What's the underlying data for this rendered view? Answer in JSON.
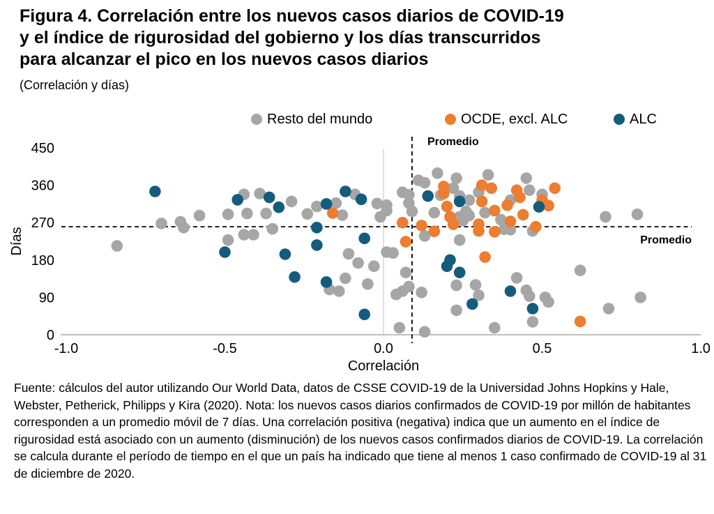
{
  "figure": {
    "title_lines": [
      "Figura 4. Correlación entre los nuevos casos diarios de COVID-19",
      "y el índice de rigurosidad del gobierno y los días transcurridos",
      "para alcanzar el pico en los nuevos casos diarios"
    ],
    "subtitle": "(Correlación y días)"
  },
  "legend": [
    {
      "label": "Resto del mundo",
      "color": "#A6A6A6"
    },
    {
      "label": "OCDE, excl. ALC",
      "color": "#ED7D31"
    },
    {
      "label": "ALC",
      "color": "#145C7E"
    }
  ],
  "chart_data": {
    "type": "scatter",
    "xlabel": "Correlación",
    "ylabel": "Días",
    "xlim": [
      -1.0,
      1.0
    ],
    "ylim": [
      0,
      450
    ],
    "x_ticks": [
      -1.0,
      -0.5,
      0.0,
      0.5,
      1.0
    ],
    "x_tick_labels": [
      "-1.0",
      "-0.5",
      "0.0",
      "0.5",
      "1.0"
    ],
    "y_ticks": [
      0,
      90,
      180,
      270,
      360,
      450
    ],
    "grid": false,
    "legend_position": "top",
    "mean_lines": {
      "x": 0.09,
      "y": 260,
      "label_top": "Promedio",
      "label_right": "Promedio"
    },
    "series": [
      {
        "name": "Resto del mundo",
        "color": "#A6A6A6",
        "points": [
          [
            -0.84,
            214
          ],
          [
            -0.7,
            268
          ],
          [
            -0.64,
            272
          ],
          [
            -0.63,
            258
          ],
          [
            -0.58,
            287
          ],
          [
            -0.49,
            290
          ],
          [
            -0.49,
            228
          ],
          [
            -0.44,
            338
          ],
          [
            -0.44,
            241
          ],
          [
            -0.43,
            292
          ],
          [
            -0.41,
            241
          ],
          [
            -0.39,
            340
          ],
          [
            -0.37,
            292
          ],
          [
            -0.35,
            255
          ],
          [
            -0.29,
            321
          ],
          [
            -0.24,
            291
          ],
          [
            -0.21,
            309
          ],
          [
            -0.15,
            317
          ],
          [
            -0.13,
            288
          ],
          [
            -0.09,
            338
          ],
          [
            -0.11,
            195
          ],
          [
            -0.08,
            173
          ],
          [
            -0.03,
            165
          ],
          [
            -0.17,
            109
          ],
          [
            -0.14,
            105
          ],
          [
            -0.12,
            136
          ],
          [
            -0.05,
            122
          ],
          [
            -0.02,
            316
          ],
          [
            -0.01,
            284
          ],
          [
            0.01,
            312
          ],
          [
            0.01,
            299
          ],
          [
            0.06,
            343
          ],
          [
            0.08,
            337
          ],
          [
            0.08,
            317
          ],
          [
            0.09,
            297
          ],
          [
            0.11,
            372
          ],
          [
            0.13,
            366
          ],
          [
            0.16,
            294
          ],
          [
            0.17,
            389
          ],
          [
            0.23,
            377
          ],
          [
            0.22,
            353
          ],
          [
            0.18,
            336
          ],
          [
            0.24,
            334
          ],
          [
            0.27,
            324
          ],
          [
            0.3,
            343
          ],
          [
            0.26,
            297
          ],
          [
            0.32,
            294
          ],
          [
            0.24,
            284
          ],
          [
            0.25,
            275
          ],
          [
            0.27,
            287
          ],
          [
            0.33,
            385
          ],
          [
            0.37,
            277
          ],
          [
            0.38,
            254
          ],
          [
            0.4,
            253
          ],
          [
            0.4,
            324
          ],
          [
            0.45,
            377
          ],
          [
            0.46,
            348
          ],
          [
            0.47,
            250
          ],
          [
            0.5,
            338
          ],
          [
            0.7,
            284
          ],
          [
            0.8,
            290
          ],
          [
            0.01,
            199
          ],
          [
            0.03,
            197
          ],
          [
            0.07,
            150
          ],
          [
            0.08,
            116
          ],
          [
            0.06,
            105
          ],
          [
            0.04,
            97
          ],
          [
            0.12,
            102
          ],
          [
            0.05,
            17
          ],
          [
            0.13,
            7
          ],
          [
            0.24,
            228
          ],
          [
            0.23,
            119
          ],
          [
            0.29,
            120
          ],
          [
            0.3,
            95
          ],
          [
            0.23,
            59
          ],
          [
            0.35,
            17
          ],
          [
            0.42,
            137
          ],
          [
            0.45,
            107
          ],
          [
            0.46,
            93
          ],
          [
            0.47,
            31
          ],
          [
            0.51,
            90
          ],
          [
            0.52,
            79
          ],
          [
            0.62,
            155
          ],
          [
            0.71,
            63
          ],
          [
            0.81,
            90
          ],
          [
            0.13,
            238
          ]
        ]
      },
      {
        "name": "OCDE, excl. ALC",
        "color": "#ED7D31",
        "points": [
          [
            -0.16,
            293
          ],
          [
            0.06,
            270
          ],
          [
            0.12,
            263
          ],
          [
            0.19,
            357
          ],
          [
            0.19,
            340
          ],
          [
            0.2,
            309
          ],
          [
            0.21,
            284
          ],
          [
            0.22,
            266
          ],
          [
            0.31,
            360
          ],
          [
            0.34,
            353
          ],
          [
            0.31,
            321
          ],
          [
            0.35,
            299
          ],
          [
            0.3,
            266
          ],
          [
            0.39,
            312
          ],
          [
            0.42,
            348
          ],
          [
            0.43,
            331
          ],
          [
            0.44,
            289
          ],
          [
            0.4,
            273
          ],
          [
            0.07,
            224
          ],
          [
            0.16,
            249
          ],
          [
            0.3,
            250
          ],
          [
            0.35,
            248
          ],
          [
            0.32,
            187
          ],
          [
            0.5,
            324
          ],
          [
            0.52,
            311
          ],
          [
            0.54,
            353
          ],
          [
            0.48,
            260
          ],
          [
            0.62,
            32
          ]
        ]
      },
      {
        "name": "ALC",
        "color": "#145C7E",
        "points": [
          [
            -0.72,
            345
          ],
          [
            -0.46,
            325
          ],
          [
            -0.36,
            331
          ],
          [
            -0.33,
            307
          ],
          [
            -0.18,
            315
          ],
          [
            -0.12,
            345
          ],
          [
            -0.07,
            326
          ],
          [
            -0.21,
            258
          ],
          [
            -0.5,
            199
          ],
          [
            -0.31,
            194
          ],
          [
            -0.28,
            139
          ],
          [
            -0.21,
            216
          ],
          [
            -0.18,
            127
          ],
          [
            -0.06,
            232
          ],
          [
            -0.06,
            49
          ],
          [
            0.14,
            334
          ],
          [
            0.24,
            321
          ],
          [
            0.49,
            308
          ],
          [
            0.21,
            180
          ],
          [
            0.2,
            165
          ],
          [
            0.24,
            150
          ],
          [
            0.28,
            74
          ],
          [
            0.4,
            105
          ],
          [
            0.47,
            63
          ]
        ]
      }
    ]
  },
  "note": "Fuente: cálculos del autor utilizando Our World Data, datos de CSSE COVID-19 de la Universidad Johns Hopkins y Hale, Webster, Petherick, Philipps y Kira (2020). Nota: los nuevos casos diarios confirmados de COVID-19 por millón de habitantes corresponden a un promedio móvil de 7 días. Una correlación positiva (negativa) indica que un aumento en el índice de rigurosidad está asociado con un aumento (disminución) de los nuevos casos confirmados diarios de COVID-19. La correlación se calcula durante el período de tiempo en el que un país ha indicado que tiene al menos 1 caso confirmado de COVID-19 al 31 de diciembre de 2020."
}
